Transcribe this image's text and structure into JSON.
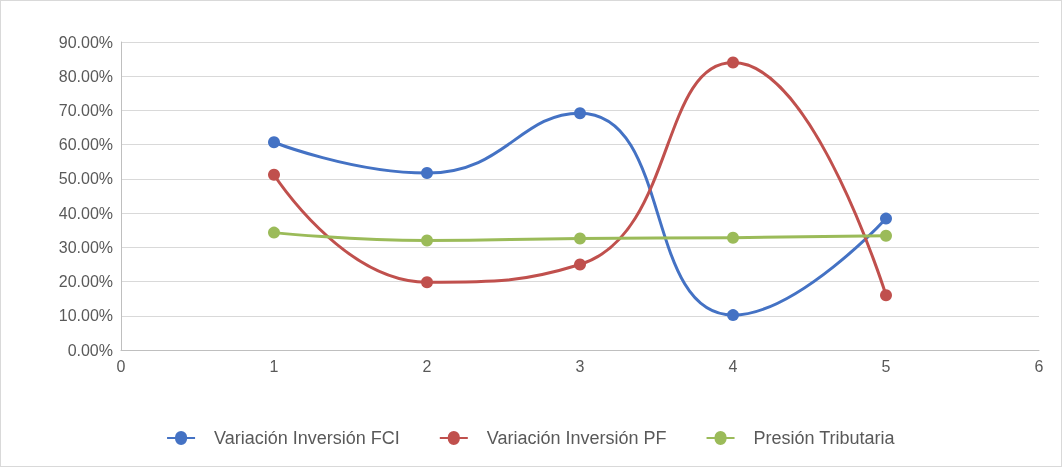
{
  "chart_data": {
    "type": "line",
    "x": [
      1,
      2,
      3,
      4,
      5
    ],
    "series": [
      {
        "name": "Variación Inversión FCI",
        "color": "#4472c4",
        "values": [
          60.7,
          51.7,
          69.2,
          10.2,
          38.4
        ]
      },
      {
        "name": "Variación Inversión PF",
        "color": "#c0504d",
        "values": [
          51.2,
          19.8,
          25.0,
          84.0,
          16.0
        ]
      },
      {
        "name": "Presión Tributaria",
        "color": "#9bbb59",
        "values": [
          34.3,
          32.0,
          32.6,
          32.8,
          33.4
        ]
      }
    ],
    "xlim": [
      0,
      6
    ],
    "xticks": [
      0,
      1,
      2,
      3,
      4,
      5,
      6
    ],
    "ylim": [
      0,
      90
    ],
    "yticks": [
      {
        "value": 0,
        "label": "0.00%"
      },
      {
        "value": 10,
        "label": "10.00%"
      },
      {
        "value": 20,
        "label": "20.00%"
      },
      {
        "value": 30,
        "label": "30.00%"
      },
      {
        "value": 40,
        "label": "40.00%"
      },
      {
        "value": 50,
        "label": "50.00%"
      },
      {
        "value": 60,
        "label": "60.00%"
      },
      {
        "value": 70,
        "label": "70.00%"
      },
      {
        "value": 80,
        "label": "80.00%"
      },
      {
        "value": 90,
        "label": "90.00%"
      }
    ],
    "grid": "y",
    "legend": "bottom",
    "marker": "circle",
    "line_style": "solid"
  }
}
